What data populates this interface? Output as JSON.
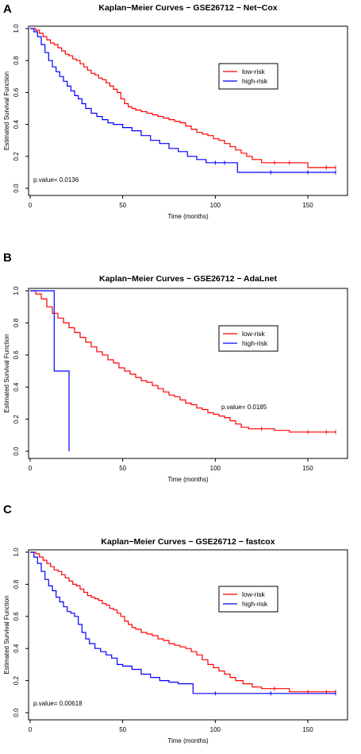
{
  "chart_data": [
    {
      "panel": "A",
      "type": "line",
      "step": true,
      "title": "Kaplan−Meier Curves − GSE26712 − Net−Cox",
      "xlabel": "Time (months)",
      "ylabel": "Estimated Survival Function",
      "xlim": [
        0,
        168
      ],
      "ylim": [
        0,
        1
      ],
      "xticks": [
        "0",
        "50",
        "100",
        "150"
      ],
      "yticks": [
        "0.0",
        "0.2",
        "0.4",
        "0.6",
        "0.8",
        "1.0"
      ],
      "pvalue": "p.value= 0.0136",
      "legend_position": "right",
      "series": [
        {
          "name": "low-risk",
          "color": "#ff0000",
          "x": [
            0,
            3,
            5,
            7,
            9,
            11,
            13,
            15,
            17,
            19,
            21,
            23,
            25,
            27,
            29,
            31,
            33,
            35,
            37,
            39,
            41,
            43,
            45,
            47,
            49,
            51,
            53,
            55,
            57,
            60,
            63,
            66,
            69,
            72,
            75,
            78,
            81,
            84,
            87,
            90,
            93,
            96,
            99,
            102,
            105,
            108,
            111,
            114,
            117,
            120,
            125,
            132,
            140,
            150,
            160,
            165
          ],
          "y": [
            1.0,
            0.99,
            0.97,
            0.95,
            0.93,
            0.91,
            0.9,
            0.88,
            0.86,
            0.84,
            0.83,
            0.81,
            0.8,
            0.78,
            0.76,
            0.74,
            0.72,
            0.71,
            0.69,
            0.68,
            0.66,
            0.64,
            0.62,
            0.6,
            0.56,
            0.53,
            0.51,
            0.5,
            0.49,
            0.48,
            0.47,
            0.46,
            0.45,
            0.44,
            0.43,
            0.42,
            0.41,
            0.39,
            0.37,
            0.35,
            0.34,
            0.33,
            0.31,
            0.3,
            0.28,
            0.26,
            0.24,
            0.22,
            0.2,
            0.18,
            0.16,
            0.16,
            0.16,
            0.13,
            0.13,
            0.13
          ]
        },
        {
          "name": "high-risk",
          "color": "#0000ff",
          "x": [
            0,
            2,
            4,
            6,
            8,
            10,
            12,
            14,
            16,
            18,
            20,
            22,
            24,
            26,
            28,
            30,
            33,
            36,
            39,
            42,
            45,
            50,
            55,
            60,
            65,
            70,
            75,
            80,
            85,
            90,
            95,
            100,
            105,
            112,
            130,
            150,
            165
          ],
          "y": [
            1.0,
            0.98,
            0.95,
            0.9,
            0.85,
            0.8,
            0.76,
            0.73,
            0.7,
            0.67,
            0.64,
            0.61,
            0.58,
            0.56,
            0.53,
            0.5,
            0.47,
            0.45,
            0.43,
            0.41,
            0.4,
            0.38,
            0.36,
            0.33,
            0.3,
            0.28,
            0.25,
            0.23,
            0.2,
            0.18,
            0.16,
            0.16,
            0.16,
            0.1,
            0.1,
            0.1,
            0.1
          ]
        }
      ]
    },
    {
      "panel": "B",
      "type": "line",
      "step": true,
      "title": "Kaplan−Meier Curves − GSE26712 − AdaLnet",
      "xlabel": "Time (months)",
      "ylabel": "Estimated Survival Function",
      "xlim": [
        0,
        168
      ],
      "ylim": [
        0,
        1
      ],
      "xticks": [
        "0",
        "50",
        "100",
        "150"
      ],
      "yticks": [
        "0.0",
        "0.2",
        "0.4",
        "0.6",
        "0.8",
        "1.0"
      ],
      "pvalue": "p.value= 0.0185",
      "legend_position": "right",
      "series": [
        {
          "name": "low-risk",
          "color": "#ff0000",
          "x": [
            0,
            3,
            6,
            9,
            12,
            15,
            18,
            21,
            24,
            27,
            30,
            33,
            36,
            39,
            42,
            45,
            48,
            51,
            54,
            57,
            60,
            63,
            66,
            69,
            72,
            75,
            78,
            81,
            84,
            87,
            90,
            93,
            96,
            99,
            102,
            105,
            108,
            111,
            114,
            118,
            125,
            132,
            140,
            150,
            160,
            165
          ],
          "y": [
            1.0,
            0.98,
            0.95,
            0.9,
            0.86,
            0.83,
            0.8,
            0.77,
            0.74,
            0.71,
            0.68,
            0.65,
            0.62,
            0.6,
            0.57,
            0.55,
            0.52,
            0.5,
            0.48,
            0.46,
            0.44,
            0.43,
            0.41,
            0.39,
            0.37,
            0.35,
            0.34,
            0.32,
            0.3,
            0.29,
            0.27,
            0.26,
            0.24,
            0.23,
            0.22,
            0.21,
            0.19,
            0.17,
            0.15,
            0.14,
            0.14,
            0.13,
            0.12,
            0.12,
            0.12,
            0.12
          ]
        },
        {
          "name": "high-risk",
          "color": "#0000ff",
          "x": [
            0,
            13,
            21
          ],
          "y": [
            1.0,
            0.5,
            0.0
          ]
        }
      ]
    },
    {
      "panel": "C",
      "type": "line",
      "step": true,
      "title": "Kaplan−Meier Curves − GSE26712 − fastcox",
      "xlabel": "Time (months)",
      "ylabel": "Estimated Survival Function",
      "xlim": [
        0,
        168
      ],
      "ylim": [
        0,
        1
      ],
      "xticks": [
        "0",
        "50",
        "100",
        "150"
      ],
      "yticks": [
        "0.0",
        "0.2",
        "0.4",
        "0.6",
        "0.8",
        "1.0"
      ],
      "pvalue": "p.value= 0.00618",
      "legend_position": "right",
      "series": [
        {
          "name": "low-risk",
          "color": "#ff0000",
          "x": [
            0,
            3,
            5,
            7,
            9,
            11,
            13,
            15,
            17,
            19,
            21,
            23,
            25,
            27,
            29,
            31,
            33,
            35,
            37,
            39,
            41,
            43,
            45,
            47,
            49,
            51,
            53,
            55,
            57,
            60,
            63,
            66,
            69,
            72,
            75,
            78,
            81,
            84,
            87,
            90,
            93,
            96,
            99,
            102,
            105,
            108,
            111,
            115,
            120,
            125,
            132,
            140,
            150,
            160,
            165
          ],
          "y": [
            1.0,
            0.99,
            0.97,
            0.95,
            0.93,
            0.91,
            0.89,
            0.88,
            0.86,
            0.84,
            0.82,
            0.8,
            0.79,
            0.77,
            0.75,
            0.73,
            0.72,
            0.71,
            0.7,
            0.68,
            0.67,
            0.65,
            0.64,
            0.62,
            0.6,
            0.57,
            0.55,
            0.53,
            0.52,
            0.5,
            0.49,
            0.48,
            0.46,
            0.45,
            0.43,
            0.42,
            0.41,
            0.4,
            0.38,
            0.36,
            0.33,
            0.3,
            0.28,
            0.26,
            0.24,
            0.22,
            0.2,
            0.18,
            0.16,
            0.15,
            0.15,
            0.13,
            0.13,
            0.13,
            0.13
          ]
        },
        {
          "name": "high-risk",
          "color": "#0000ff",
          "x": [
            0,
            2,
            4,
            6,
            8,
            10,
            12,
            14,
            16,
            18,
            20,
            22,
            24,
            26,
            28,
            30,
            32,
            35,
            38,
            41,
            44,
            47,
            50,
            55,
            60,
            65,
            70,
            75,
            80,
            88,
            100,
            130,
            165
          ],
          "y": [
            1.0,
            0.97,
            0.93,
            0.88,
            0.83,
            0.79,
            0.76,
            0.72,
            0.69,
            0.66,
            0.63,
            0.62,
            0.6,
            0.55,
            0.5,
            0.46,
            0.43,
            0.4,
            0.38,
            0.36,
            0.34,
            0.3,
            0.29,
            0.27,
            0.24,
            0.22,
            0.2,
            0.19,
            0.18,
            0.12,
            0.12,
            0.12,
            0.12
          ]
        }
      ]
    }
  ]
}
